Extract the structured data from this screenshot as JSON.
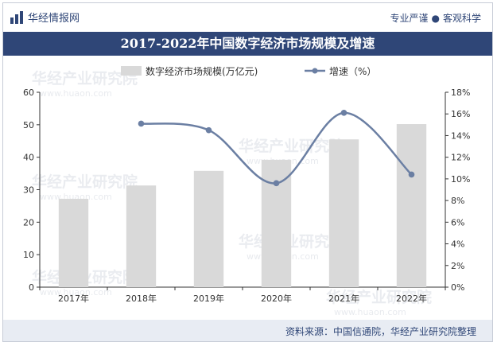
{
  "header": {
    "brand": "华经情报网",
    "slogan_left": "专业严谨",
    "slogan_right": "客观科学"
  },
  "watermark": {
    "text": "华经产业研究院",
    "url": "www.huaon.com"
  },
  "source": "资料来源：中国信通院，华经产业研究院整理",
  "colors": {
    "bar": "#d9d9d9",
    "line": "#6b7fa3",
    "header": "#2f4677",
    "footer": "#e8ecf3"
  },
  "chart_data": {
    "type": "bar",
    "title": "2017-2022年中国数字经济市场规模及增速",
    "categories": [
      "2017年",
      "2018年",
      "2019年",
      "2020年",
      "2021年",
      "2022年"
    ],
    "series": [
      {
        "name": "数字经济市场规模(万亿元)",
        "type": "bar",
        "axis": "left",
        "values": [
          27.2,
          31.3,
          35.8,
          39.2,
          45.5,
          50.2
        ]
      },
      {
        "name": "增速（%）",
        "type": "line",
        "axis": "right",
        "values": [
          null,
          15.1,
          14.5,
          9.6,
          16.1,
          10.4
        ]
      }
    ],
    "yleft": {
      "min": 0,
      "max": 60,
      "ticks": [
        "0",
        "10",
        "20",
        "30",
        "40",
        "50",
        "60"
      ]
    },
    "yright": {
      "min": 0,
      "max": 18,
      "ticks": [
        "0%",
        "2%",
        "4%",
        "6%",
        "8%",
        "10%",
        "12%",
        "14%",
        "16%",
        "18%"
      ]
    },
    "legend": "top-center",
    "grid": false
  }
}
